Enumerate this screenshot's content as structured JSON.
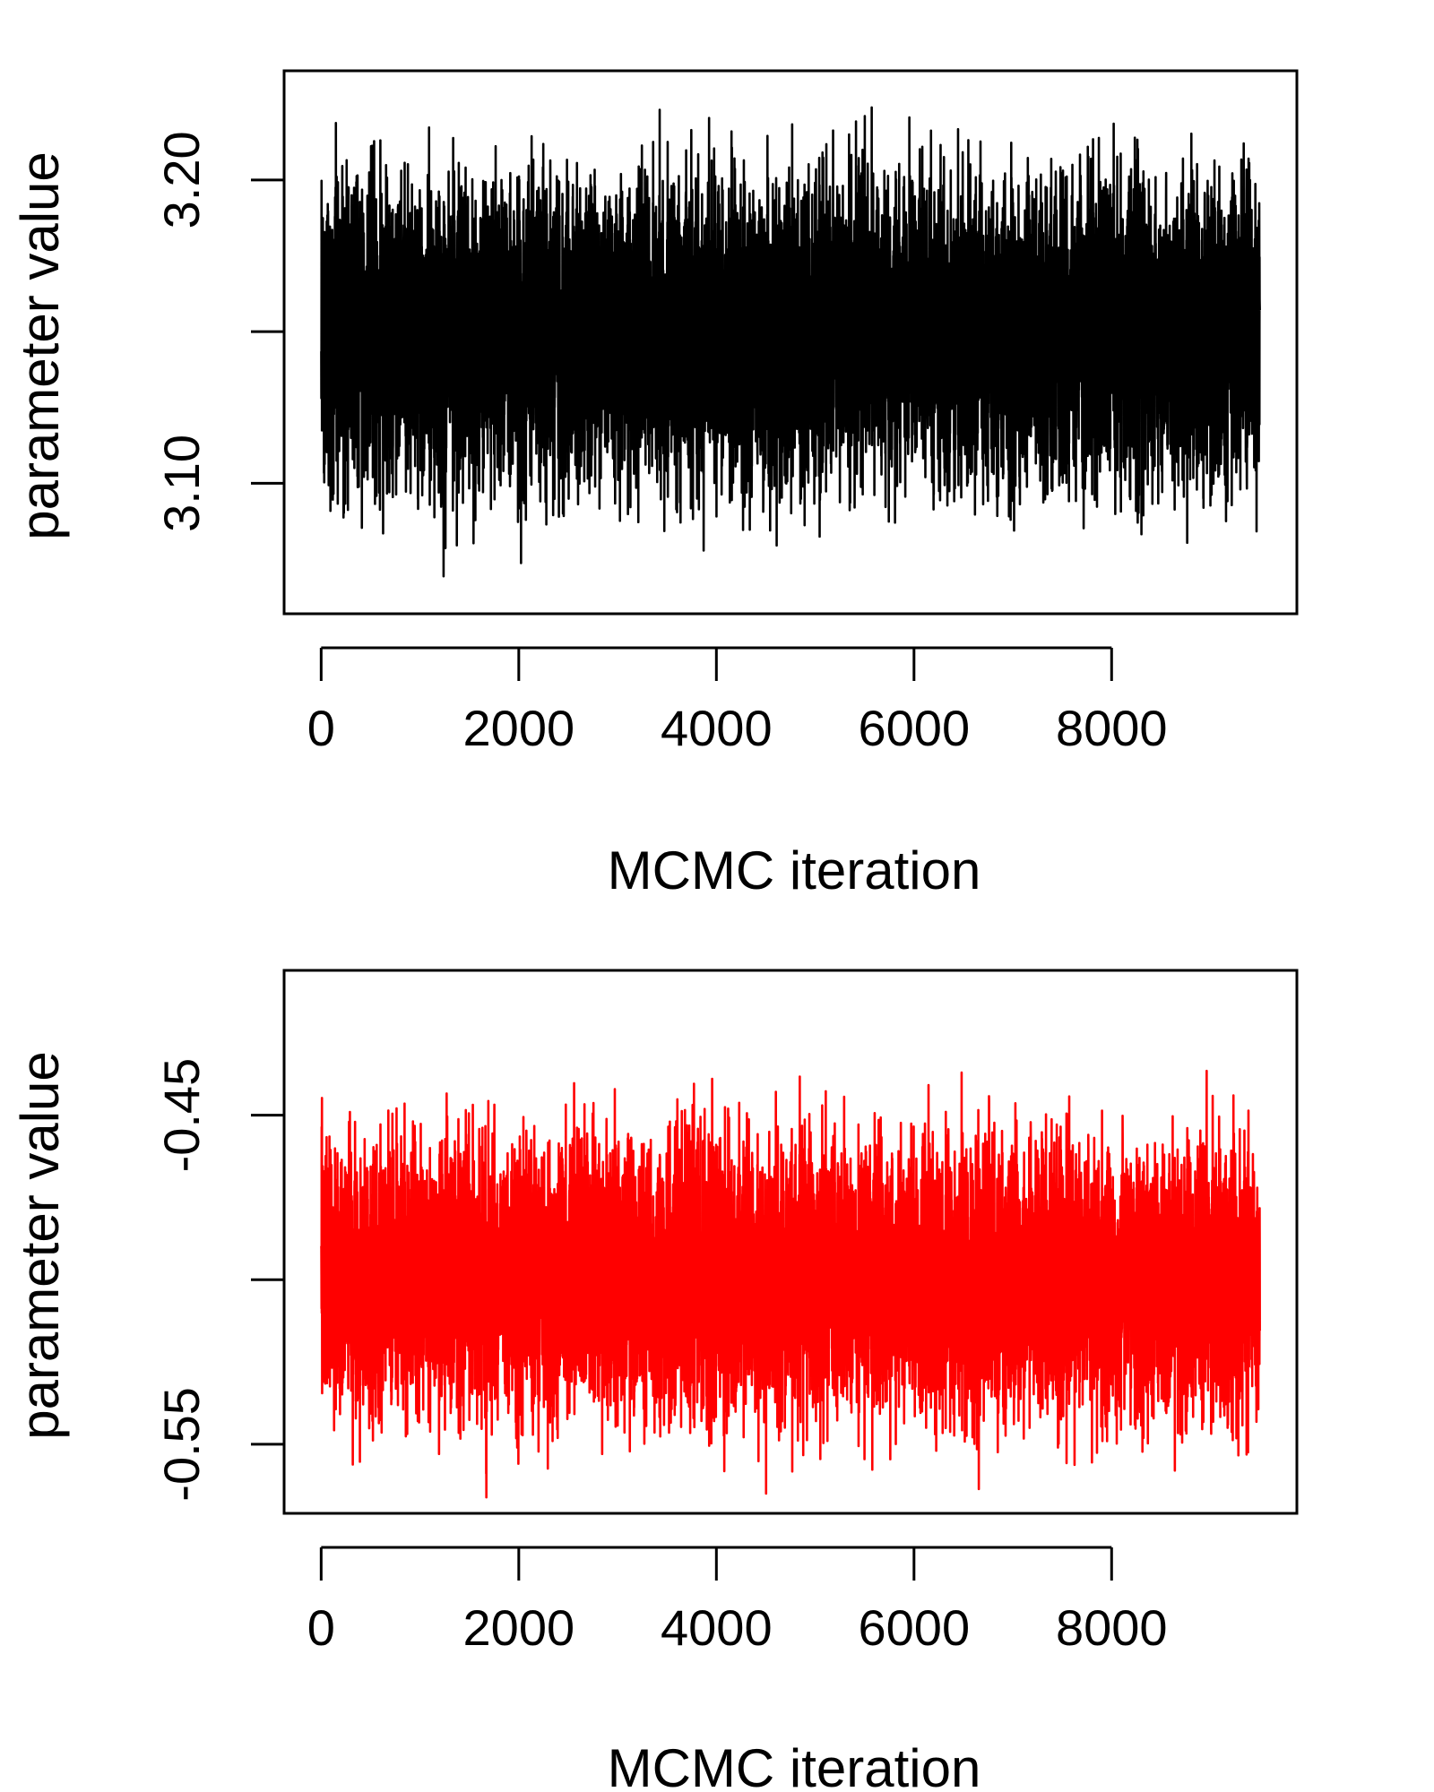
{
  "chart_data": [
    {
      "type": "line",
      "title": "",
      "xlabel": "MCMC iteration",
      "ylabel": "parameter value",
      "x_range": [
        1,
        9500
      ],
      "xlim": [
        -375,
        9875
      ],
      "ylim": [
        3.057,
        3.236
      ],
      "x_ticks": [
        0,
        2000,
        4000,
        6000,
        8000
      ],
      "x_tick_labels": [
        "0",
        "2000",
        "4000",
        "6000",
        "8000"
      ],
      "y_ticks": [
        3.1,
        3.15,
        3.2
      ],
      "y_tick_labels": [
        "3.10",
        "",
        "3.20"
      ],
      "series": [
        {
          "color": "#000000",
          "mean": 3.15,
          "sd": 0.024,
          "n": 9500,
          "min": 3.058,
          "max": 3.23
        }
      ],
      "grid": false,
      "legend": "none"
    },
    {
      "type": "line",
      "title": "",
      "xlabel": "MCMC iteration",
      "ylabel": "parameter value",
      "x_range": [
        1,
        9500
      ],
      "xlim": [
        -375,
        9875
      ],
      "ylim": [
        -0.571,
        -0.406
      ],
      "x_ticks": [
        0,
        2000,
        4000,
        6000,
        8000
      ],
      "x_tick_labels": [
        "0",
        "2000",
        "4000",
        "6000",
        "8000"
      ],
      "y_ticks": [
        -0.55,
        -0.5,
        -0.45
      ],
      "y_tick_labels": [
        "-0.55",
        "",
        "-0.45"
      ],
      "series": [
        {
          "color": "#ff0000",
          "mean": -0.5,
          "sd": 0.02,
          "n": 9500,
          "min": -0.57,
          "max": -0.42
        }
      ],
      "grid": false,
      "legend": "none"
    }
  ]
}
